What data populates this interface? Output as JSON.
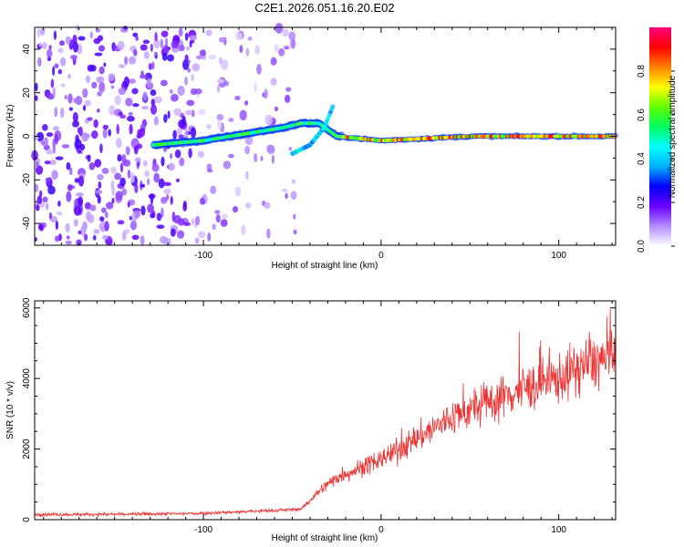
{
  "title": "C2E1.2026.051.16.20.E02",
  "chart_data": [
    {
      "type": "heatmap",
      "xlabel": "Height of straight line (km)",
      "ylabel": "Frequency (Hz)",
      "xlim": [
        -195,
        132
      ],
      "ylim": [
        -50,
        50
      ],
      "x_ticks": [
        -100,
        0,
        100
      ],
      "y_ticks": [
        -40,
        -20,
        0,
        20,
        40
      ],
      "colorbar": {
        "label": "Normalized spectral amplitude",
        "range": [
          0.0,
          1.0
        ],
        "ticks": [
          0.0,
          0.2,
          0.4,
          0.6,
          0.8
        ],
        "colors": [
          "#ffffff",
          "#b48cff",
          "#6a00ff",
          "#0000ff",
          "#00b0ff",
          "#00ffff",
          "#00ff60",
          "#60ff00",
          "#ffff00",
          "#ff8000",
          "#ff0000",
          "#ff0080"
        ]
      },
      "signal_track": [
        {
          "x": -128,
          "f": -4
        },
        {
          "x": -115,
          "f": -3
        },
        {
          "x": -100,
          "f": -2
        },
        {
          "x": -85,
          "f": 0
        },
        {
          "x": -70,
          "f": 2
        },
        {
          "x": -55,
          "f": 4
        },
        {
          "x": -45,
          "f": 6
        },
        {
          "x": -35,
          "f": 6
        },
        {
          "x": -25,
          "f": 0
        },
        {
          "x": 0,
          "f": -2
        },
        {
          "x": 50,
          "f": 0
        },
        {
          "x": 100,
          "f": 0
        },
        {
          "x": 132,
          "f": 0
        }
      ],
      "branch_track": [
        {
          "x": -50,
          "f": -8
        },
        {
          "x": -40,
          "f": -4
        },
        {
          "x": -32,
          "f": 4
        },
        {
          "x": -27,
          "f": 14
        }
      ]
    },
    {
      "type": "line",
      "xlabel": "Height of straight line (km)",
      "ylabel": "SNR (10 * v/v)",
      "xlim": [
        -195,
        132
      ],
      "ylim": [
        0,
        6200
      ],
      "x_ticks": [
        -100,
        0,
        100
      ],
      "y_ticks": [
        0,
        2000,
        4000,
        6000
      ],
      "color": "#ee3333",
      "trend": [
        {
          "x": -195,
          "y": 150
        },
        {
          "x": -150,
          "y": 150
        },
        {
          "x": -110,
          "y": 170
        },
        {
          "x": -80,
          "y": 220
        },
        {
          "x": -60,
          "y": 260
        },
        {
          "x": -45,
          "y": 300
        },
        {
          "x": -35,
          "y": 800
        },
        {
          "x": -25,
          "y": 1200
        },
        {
          "x": -10,
          "y": 1500
        },
        {
          "x": 0,
          "y": 1700
        },
        {
          "x": 20,
          "y": 2300
        },
        {
          "x": 40,
          "y": 2900
        },
        {
          "x": 60,
          "y": 3300
        },
        {
          "x": 80,
          "y": 3700
        },
        {
          "x": 100,
          "y": 4000
        },
        {
          "x": 115,
          "y": 4400
        },
        {
          "x": 132,
          "y": 4600
        }
      ]
    }
  ]
}
